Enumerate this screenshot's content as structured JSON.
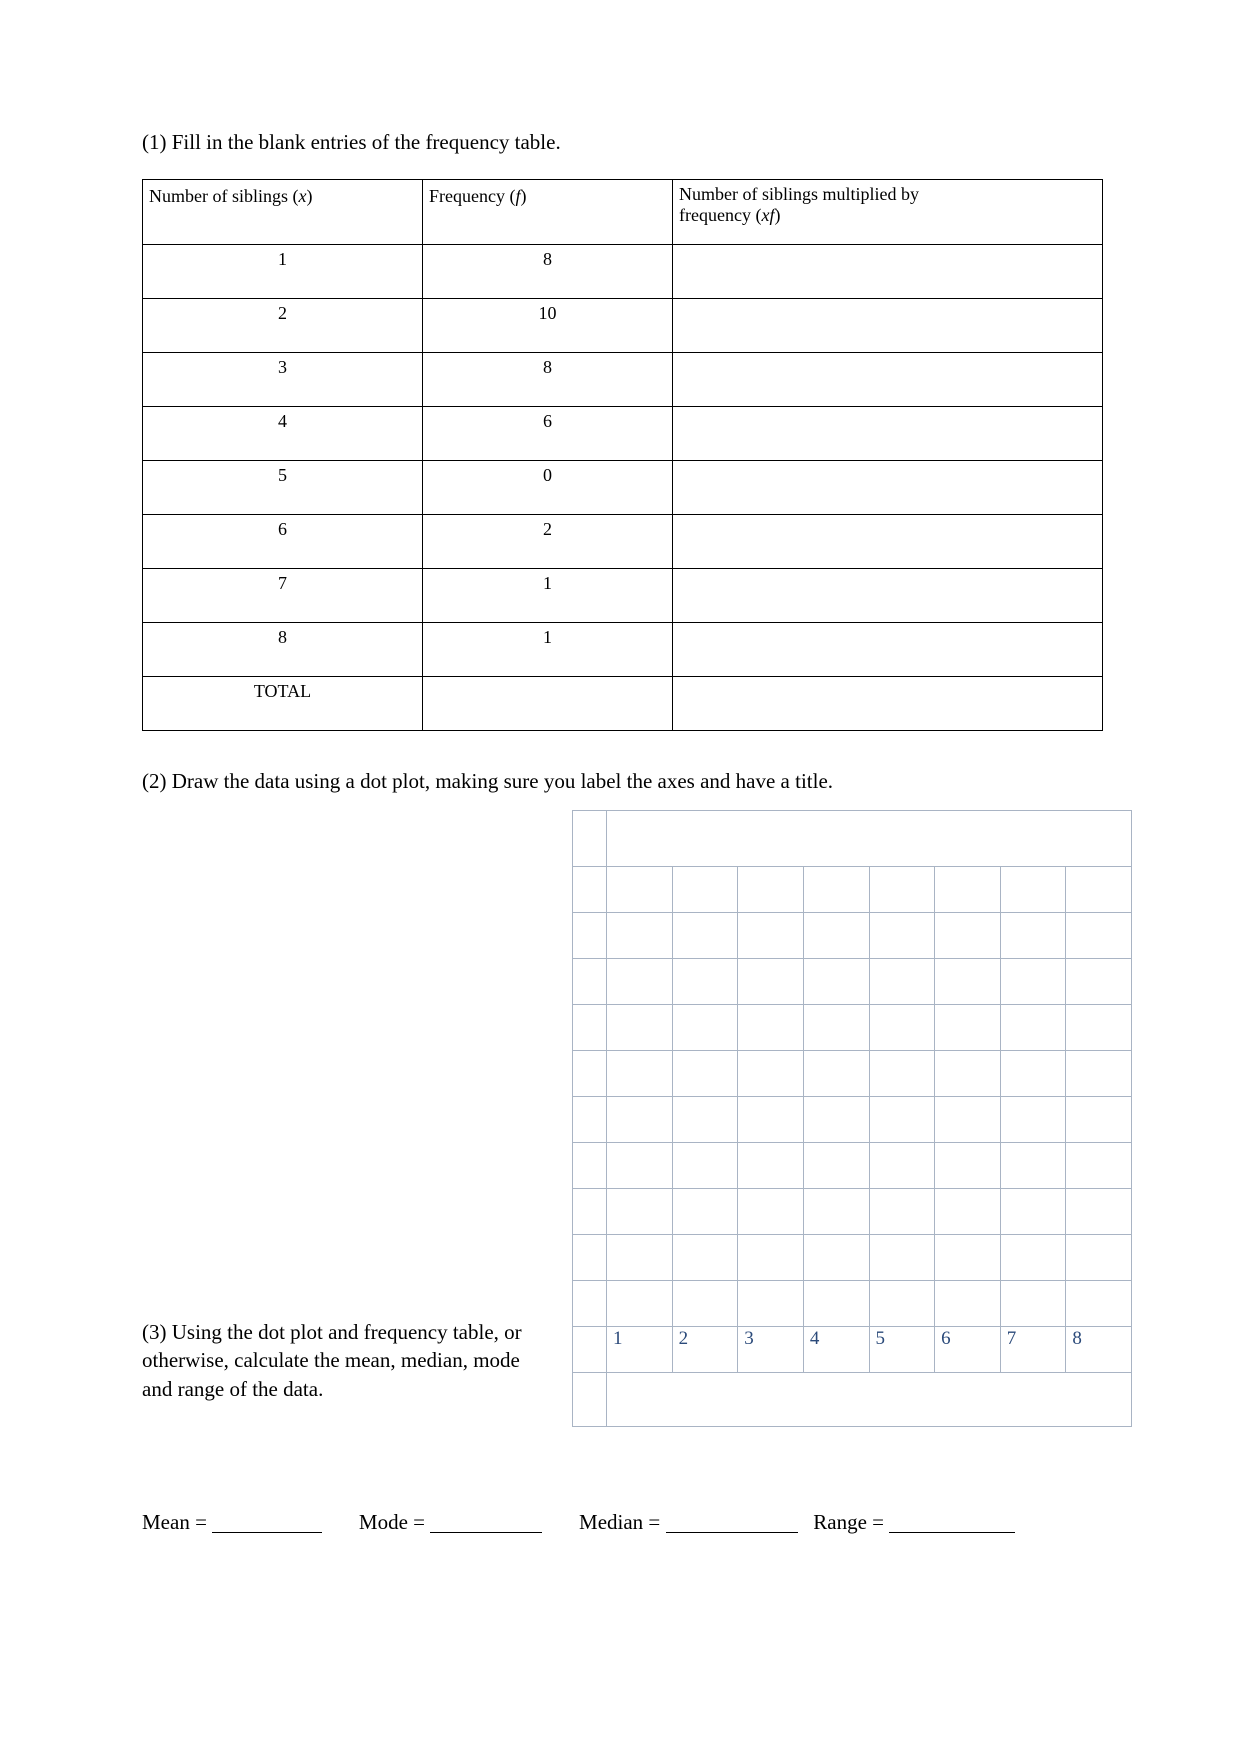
{
  "questions": {
    "q1": "(1) Fill in the blank entries of the frequency table.",
    "q2": "(2) Draw the data using a dot plot, making sure you label the axes and have a title.",
    "q3": "(3) Using the dot plot and frequency table, or otherwise, calculate the mean, median, mode and range of the data."
  },
  "freq_table": {
    "headers": {
      "x_pre": "Number of siblings (",
      "x_var": "x",
      "x_post": ")",
      "f_pre": "Frequency (",
      "f_var": "f",
      "f_post": ")",
      "xf_line1": "Number of siblings multiplied by",
      "xf_line2_pre": "frequency (",
      "xf_var": "xf",
      "xf_line2_post": ")"
    },
    "rows": [
      {
        "x": "1",
        "f": "8",
        "xf": ""
      },
      {
        "x": "2",
        "f": "10",
        "xf": ""
      },
      {
        "x": "3",
        "f": "8",
        "xf": ""
      },
      {
        "x": "4",
        "f": "6",
        "xf": ""
      },
      {
        "x": "5",
        "f": "0",
        "xf": ""
      },
      {
        "x": "6",
        "f": "2",
        "xf": ""
      },
      {
        "x": "7",
        "f": "1",
        "xf": ""
      },
      {
        "x": "8",
        "f": "1",
        "xf": ""
      }
    ],
    "total_label": "TOTAL"
  },
  "dotplot": {
    "type": "grid",
    "grid_color": "#a9b4c4",
    "background_color": "#ffffff",
    "label_color": "#2b4a7a",
    "label_fontsize": 19,
    "rows_above_axis": 10,
    "x_labels": [
      "1",
      "2",
      "3",
      "4",
      "5",
      "6",
      "7",
      "8"
    ],
    "title_row_present": true,
    "footer_row_present": true
  },
  "answers": {
    "mean_label": "Mean = ",
    "mode_label": "Mode = ",
    "median_label": "Median = ",
    "range_label": "Range = ",
    "blank_widths": {
      "mean": 110,
      "mode": 112,
      "median": 132,
      "range": 126
    }
  }
}
